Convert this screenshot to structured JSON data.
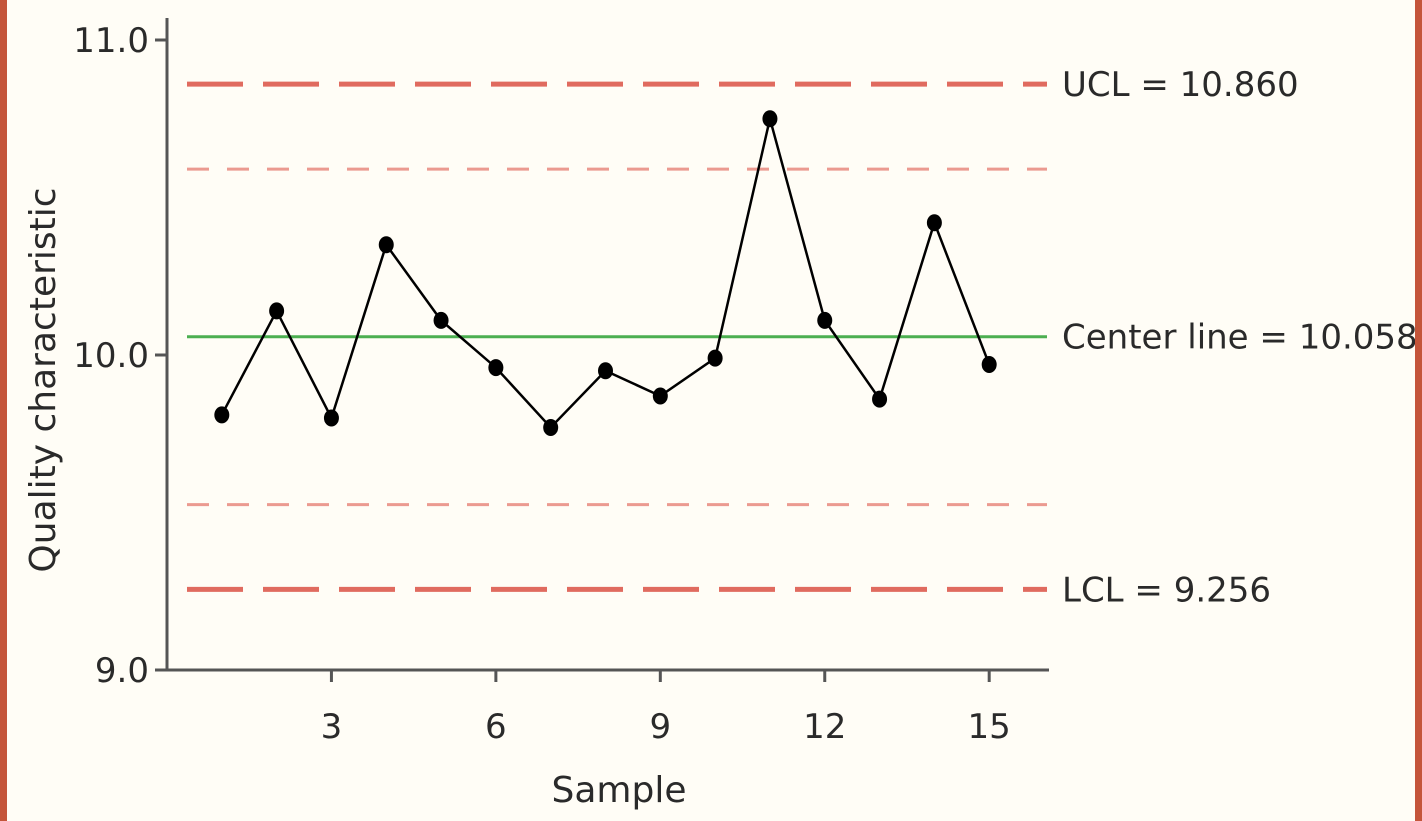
{
  "chart_data": {
    "type": "line",
    "xlabel": "Sample",
    "ylabel": "Quality characteristic",
    "x": [
      1,
      2,
      3,
      4,
      5,
      6,
      7,
      8,
      9,
      10,
      11,
      12,
      13,
      14,
      15
    ],
    "values": [
      9.81,
      10.14,
      9.8,
      10.35,
      10.11,
      9.96,
      9.77,
      9.95,
      9.87,
      9.99,
      10.75,
      10.11,
      9.86,
      10.42,
      9.97
    ],
    "xlim": [
      0,
      16
    ],
    "ylim": [
      9.0,
      11.0
    ],
    "x_ticks": [
      3,
      6,
      9,
      12,
      15
    ],
    "x_tick_labels": [
      "3",
      "6",
      "9",
      "12",
      "15"
    ],
    "y_ticks": [
      9.0,
      10.0,
      11.0
    ],
    "y_tick_labels": [
      "9.0",
      "10.0",
      "11.0"
    ],
    "grid": false,
    "control_lines": {
      "ucl": {
        "value": 10.86,
        "label": "UCL = 10.860",
        "color": "#e06b5f"
      },
      "center": {
        "value": 10.058,
        "label": "Center line = 10.058",
        "color": "#4caf50"
      },
      "lcl": {
        "value": 9.256,
        "label": "LCL = 9.256",
        "color": "#e06b5f"
      },
      "upper_warning": {
        "value": 10.59,
        "color": "#eb9a90"
      },
      "lower_warning": {
        "value": 9.525,
        "color": "#eb9a90"
      }
    },
    "series_color": "#000000"
  }
}
